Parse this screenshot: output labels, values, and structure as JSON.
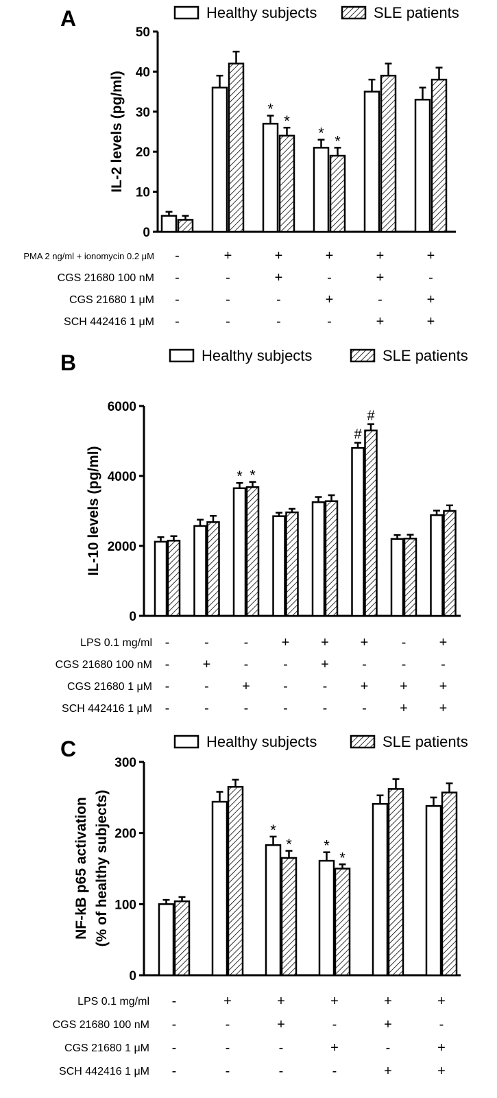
{
  "chart_data": [
    {
      "type": "bar",
      "panel": "A",
      "ylabel": "IL-2 levels (pg/ml)",
      "ylim": [
        0,
        50
      ],
      "yticks": [
        0,
        10,
        20,
        30,
        40,
        50
      ],
      "series": [
        {
          "name": "Healthy subjects",
          "values": [
            4,
            36,
            27,
            21,
            35,
            33
          ],
          "errors": [
            1,
            3,
            2,
            2,
            3,
            3
          ]
        },
        {
          "name": "SLE patients",
          "values": [
            3,
            42,
            24,
            19,
            39,
            38
          ],
          "errors": [
            1,
            3,
            2,
            2,
            3,
            3
          ]
        }
      ],
      "annotations": [
        {
          "group": 2,
          "series": 0,
          "text": "*"
        },
        {
          "group": 2,
          "series": 1,
          "text": "*"
        },
        {
          "group": 3,
          "series": 0,
          "text": "*"
        },
        {
          "group": 3,
          "series": 1,
          "text": "*"
        }
      ],
      "conditions": [
        {
          "label": "PMA 2 ng/ml + ionomycin  0.2 μM",
          "values": [
            "-",
            "+",
            "+",
            "+",
            "+",
            "+"
          ]
        },
        {
          "label": "CGS 21680 100 nM",
          "values": [
            "-",
            "-",
            "+",
            "-",
            "+",
            "-"
          ]
        },
        {
          "label": "CGS 21680 1 μM",
          "values": [
            "-",
            "-",
            "-",
            "+",
            "-",
            "+"
          ]
        },
        {
          "label": "SCH 442416 1 μM",
          "values": [
            "-",
            "-",
            "-",
            "-",
            "+",
            "+"
          ]
        }
      ]
    },
    {
      "type": "bar",
      "panel": "B",
      "ylabel": "IL-10 levels (pg/ml)",
      "ylim": [
        0,
        6000
      ],
      "yticks": [
        0,
        2000,
        4000,
        6000
      ],
      "series": [
        {
          "name": "Healthy subjects",
          "values": [
            2120,
            2570,
            3650,
            2850,
            3250,
            4800,
            2200,
            2880
          ],
          "errors": [
            130,
            180,
            150,
            100,
            150,
            150,
            110,
            130
          ]
        },
        {
          "name": "SLE patients",
          "values": [
            2150,
            2680,
            3680,
            2960,
            3280,
            5300,
            2210,
            3000
          ],
          "errors": [
            130,
            180,
            150,
            100,
            170,
            180,
            110,
            160
          ]
        }
      ],
      "annotations": [
        {
          "group": 2,
          "series": 0,
          "text": "*"
        },
        {
          "group": 2,
          "series": 1,
          "text": "*"
        },
        {
          "group": 5,
          "series": 0,
          "text": "#"
        },
        {
          "group": 5,
          "series": 1,
          "text": "#"
        }
      ],
      "conditions": [
        {
          "label": "LPS  0.1 mg/ml",
          "values": [
            "-",
            "-",
            "-",
            "+",
            "+",
            "+",
            "-",
            "+"
          ]
        },
        {
          "label": "CGS 21680 100 nM",
          "values": [
            "-",
            "+",
            "-",
            "-",
            "+",
            "-",
            "-",
            "-"
          ]
        },
        {
          "label": "CGS 21680 1 μM",
          "values": [
            "-",
            "-",
            "+",
            "-",
            "-",
            "+",
            "+",
            "+"
          ]
        },
        {
          "label": "SCH 442416 1 μM",
          "values": [
            "-",
            "-",
            "-",
            "-",
            "-",
            "-",
            "+",
            "+"
          ]
        }
      ]
    },
    {
      "type": "bar",
      "panel": "C",
      "ylabel": "NF-kB p65 activation",
      "ylabel2": "(% of healthy subjects)",
      "ylim": [
        0,
        300
      ],
      "yticks": [
        0,
        100,
        200,
        300
      ],
      "series": [
        {
          "name": "Healthy subjects",
          "values": [
            100,
            244,
            183,
            161,
            241,
            238
          ],
          "errors": [
            6,
            14,
            12,
            12,
            12,
            12
          ]
        },
        {
          "name": "SLE patients",
          "values": [
            104,
            265,
            165,
            150,
            262,
            257
          ],
          "errors": [
            6,
            10,
            10,
            6,
            14,
            13
          ]
        }
      ],
      "annotations": [
        {
          "group": 2,
          "series": 0,
          "text": "*"
        },
        {
          "group": 2,
          "series": 1,
          "text": "*"
        },
        {
          "group": 3,
          "series": 0,
          "text": "*"
        },
        {
          "group": 3,
          "series": 1,
          "text": "*"
        }
      ],
      "conditions": [
        {
          "label": "LPS  0.1 mg/ml",
          "values": [
            "-",
            "+",
            "+",
            "+",
            "+",
            "+"
          ]
        },
        {
          "label": "CGS 21680 100 nM",
          "values": [
            "-",
            "-",
            "+",
            "-",
            "+",
            "-"
          ]
        },
        {
          "label": "CGS 21680 1 μM",
          "values": [
            "-",
            "-",
            "-",
            "+",
            "-",
            "+"
          ]
        },
        {
          "label": "SCH 442416 1 μM",
          "values": [
            "-",
            "-",
            "-",
            "-",
            "+",
            "+"
          ]
        }
      ]
    }
  ],
  "colors": {
    "healthy_fill": "#ffffff",
    "sle_hatch": "#000000",
    "axis": "#000000"
  }
}
